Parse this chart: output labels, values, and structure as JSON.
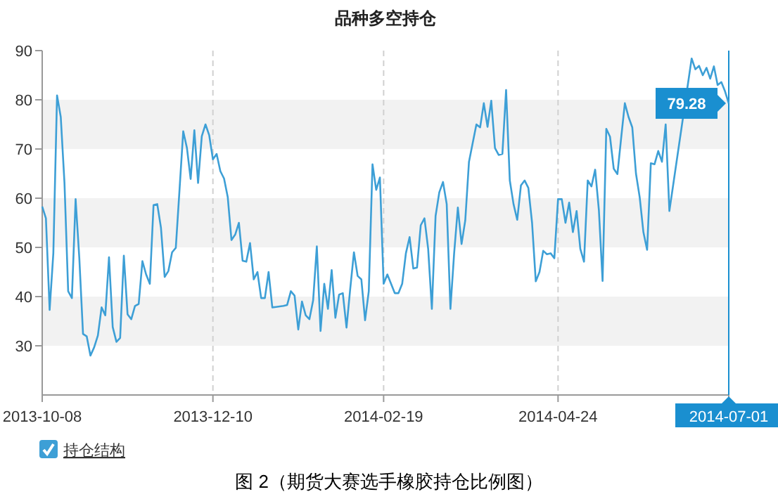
{
  "chart_data": {
    "type": "line",
    "title": "品种多空持仓",
    "categories": [
      "2013-10-08",
      null,
      null,
      null,
      null,
      null,
      null,
      null,
      null,
      null,
      null,
      null,
      null,
      null,
      null,
      null,
      null,
      null,
      null,
      null,
      null,
      null,
      null,
      null,
      null,
      null,
      null,
      null,
      null,
      null,
      null,
      null,
      null,
      null,
      null,
      null,
      null,
      null,
      null,
      null,
      null,
      null,
      null,
      null,
      null,
      null,
      "2013-12-10",
      null,
      null,
      null,
      null,
      null,
      null,
      null,
      null,
      null,
      null,
      null,
      null,
      null,
      null,
      null,
      null,
      null,
      null,
      null,
      null,
      null,
      null,
      null,
      null,
      null,
      null,
      null,
      null,
      null,
      null,
      null,
      null,
      null,
      null,
      null,
      null,
      null,
      null,
      null,
      null,
      null,
      null,
      null,
      null,
      null,
      "2014-02-19",
      null,
      null,
      null,
      null,
      null,
      null,
      null,
      null,
      null,
      null,
      null,
      null,
      null,
      null,
      null,
      null,
      null,
      null,
      null,
      null,
      null,
      null,
      null,
      null,
      null,
      null,
      null,
      null,
      null,
      null,
      null,
      null,
      null,
      null,
      null,
      null,
      null,
      null,
      null,
      null,
      null,
      null,
      null,
      null,
      null,
      null,
      "2014-04-24",
      null,
      null,
      null,
      null,
      null,
      null,
      null,
      null,
      null,
      null,
      null,
      null,
      null,
      null,
      null,
      null,
      null,
      null,
      null,
      null,
      null,
      null,
      null,
      null,
      null,
      null,
      null,
      null,
      null,
      null,
      null,
      null,
      null,
      null,
      null,
      null,
      null,
      null,
      null,
      null,
      null,
      null,
      null,
      null,
      null,
      "2014-07-01"
    ],
    "series": [
      {
        "name": "持仓结构",
        "color": "#3d9fd6",
        "values": [
          58.3,
          55.9,
          37.3,
          48.8,
          80.9,
          76.5,
          63.1,
          41.1,
          39.7,
          59.8,
          47.8,
          32.4,
          31.9,
          28.0,
          29.7,
          32.1,
          37.8,
          36.2,
          48.0,
          33.8,
          30.8,
          31.6,
          48.3,
          36.4,
          35.4,
          38.1,
          38.5,
          47.2,
          44.5,
          42.6,
          58.6,
          58.8,
          54.0,
          44.0,
          45.2,
          49.0,
          49.9,
          61.7,
          73.6,
          70.2,
          63.9,
          73.8,
          63.1,
          72.6,
          75.0,
          72.8,
          67.9,
          69.0,
          65.5,
          64.0,
          60.2,
          51.5,
          52.6,
          55.0,
          47.3,
          47.1,
          50.9,
          43.5,
          45.0,
          39.7,
          39.7,
          45.0,
          37.8,
          37.9,
          38.0,
          38.1,
          38.3,
          41.1,
          40.2,
          33.3,
          39.0,
          36.2,
          35.4,
          39.2,
          50.2,
          33.0,
          42.6,
          37.5,
          45.4,
          35.7,
          40.4,
          40.7,
          33.7,
          41.6,
          49.0,
          44.2,
          43.5,
          35.2,
          41.1,
          66.9,
          61.7,
          64.2,
          42.6,
          44.5,
          42.6,
          40.7,
          40.7,
          42.6,
          48.8,
          52.1,
          45.7,
          45.9,
          54.5,
          55.9,
          49.7,
          37.5,
          56.4,
          61.2,
          63.3,
          58.8,
          37.5,
          48.8,
          58.1,
          50.7,
          55.5,
          67.4,
          71.2,
          75.0,
          74.4,
          79.3,
          74.5,
          79.8,
          70.2,
          68.8,
          69.0,
          82.0,
          63.6,
          58.8,
          55.6,
          62.6,
          63.6,
          62.1,
          55.0,
          43.1,
          45.0,
          49.3,
          48.6,
          48.8,
          47.8,
          59.8,
          59.8,
          55.0,
          59.1,
          53.1,
          57.4,
          49.7,
          47.1,
          63.6,
          62.4,
          65.8,
          57.6,
          43.2,
          74.1,
          72.5,
          66.0,
          64.9,
          72.2,
          79.3,
          76.5,
          74.4,
          65.0,
          60.2,
          53.1,
          49.5,
          67.1,
          66.9,
          69.6,
          67.4,
          75.0,
          57.4,
          null,
          null,
          null,
          null,
          null,
          88.4,
          86.2,
          86.9,
          85.0,
          86.5,
          84.3,
          86.8,
          83.0,
          83.6,
          81.7,
          79.28
        ]
      }
    ],
    "ylim": [
      20,
      90
    ],
    "yticks": [
      30,
      40,
      50,
      60,
      70,
      80,
      90
    ],
    "grid": "x",
    "legend": "bottom left",
    "bands": [
      {
        "axis": "y",
        "from": 30,
        "to": 40,
        "color": "#f2f2f2"
      },
      {
        "axis": "y",
        "from": 50,
        "to": 60,
        "color": "#f2f2f2"
      },
      {
        "axis": "y",
        "from": 70,
        "to": 80,
        "color": "#f2f2f2"
      }
    ],
    "ref_lines": [
      {
        "axis": "x",
        "value": "2014-07-01",
        "color": "#1a8fd0"
      }
    ],
    "annotations": [
      {
        "text": "79.28",
        "x": "2014-07-01",
        "y": 79.28
      },
      "图 2（期货大赛选手橡胶持仓比例图）"
    ]
  }
}
